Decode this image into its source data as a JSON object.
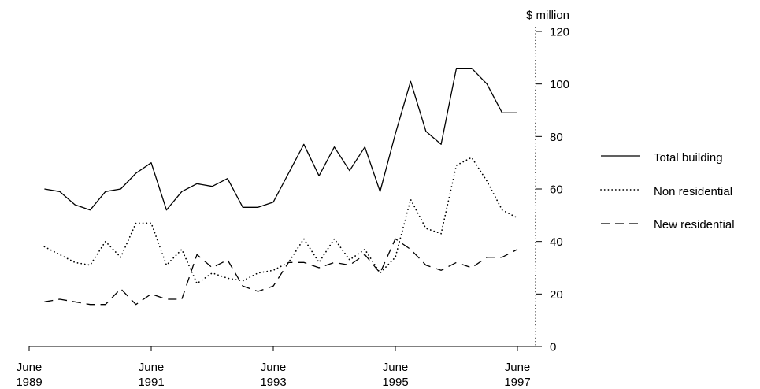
{
  "chart_data": {
    "type": "line",
    "ylabel": "$ million",
    "xlabel": "",
    "ylim": [
      0,
      120
    ],
    "y_ticks": [
      0,
      20,
      40,
      60,
      80,
      100,
      120
    ],
    "xlim": [
      "1989-06",
      "1997-06"
    ],
    "x_tick_labels": [
      {
        "x": "1989-06",
        "month": "June",
        "year": "1989"
      },
      {
        "x": "1991-06",
        "month": "June",
        "year": "1991"
      },
      {
        "x": "1993-06",
        "month": "June",
        "year": "1993"
      },
      {
        "x": "1995-06",
        "month": "June",
        "year": "1995"
      },
      {
        "x": "1997-06",
        "month": "June",
        "year": "1997"
      }
    ],
    "x": [
      "1989-09",
      "1989-12",
      "1990-03",
      "1990-06",
      "1990-09",
      "1990-12",
      "1991-03",
      "1991-06",
      "1991-09",
      "1991-12",
      "1992-03",
      "1992-06",
      "1992-09",
      "1992-12",
      "1993-03",
      "1993-06",
      "1993-09",
      "1993-12",
      "1994-03",
      "1994-06",
      "1994-09",
      "1994-12",
      "1995-03",
      "1995-06",
      "1995-09",
      "1995-12",
      "1996-03",
      "1996-06",
      "1996-09",
      "1996-12",
      "1997-03",
      "1997-06"
    ],
    "series": [
      {
        "name": "Total building",
        "style": "solid",
        "color": "#000000",
        "values": [
          60,
          59,
          54,
          52,
          59,
          60,
          66,
          70,
          52,
          59,
          62,
          61,
          64,
          53,
          53,
          55,
          66,
          77,
          65,
          76,
          67,
          76,
          59,
          81,
          101,
          82,
          77,
          106,
          106,
          100,
          89,
          89
        ]
      },
      {
        "name": "Non residential",
        "style": "dotted",
        "color": "#000000",
        "values": [
          38,
          35,
          32,
          31,
          40,
          34,
          47,
          47,
          31,
          37,
          24,
          28,
          26,
          25,
          28,
          29,
          32,
          41,
          32,
          41,
          33,
          37,
          28,
          34,
          56,
          45,
          43,
          69,
          72,
          63,
          52,
          49
        ]
      },
      {
        "name": "New residential",
        "style": "dashed",
        "color": "#000000",
        "values": [
          17,
          18,
          17,
          16,
          16,
          22,
          16,
          20,
          18,
          18,
          35,
          30,
          33,
          23,
          21,
          23,
          32,
          32,
          30,
          32,
          31,
          35,
          28,
          41,
          37,
          31,
          29,
          32,
          30,
          34,
          34,
          37
        ]
      }
    ],
    "legend_position": "right",
    "grid": false
  }
}
